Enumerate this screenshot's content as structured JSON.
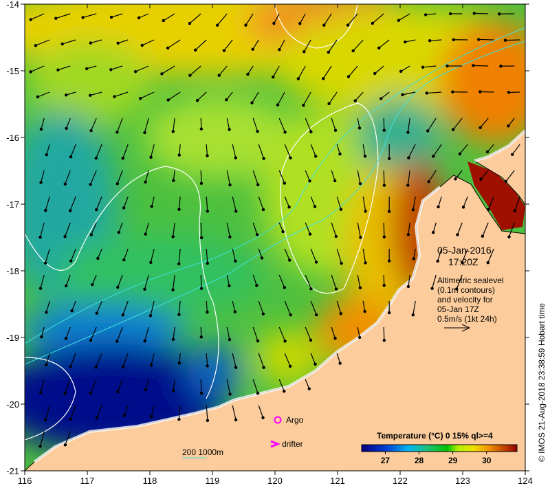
{
  "map": {
    "x_ticks": [
      "116",
      "117",
      "118",
      "119",
      "120",
      "121",
      "122",
      "123",
      "124"
    ],
    "y_ticks": [
      "-14",
      "-15",
      "-16",
      "-17",
      "-18",
      "-19",
      "-20",
      "-21"
    ],
    "lon_range": [
      116,
      124
    ],
    "lat_range": [
      -21,
      -14
    ]
  },
  "annotation": {
    "date": "05-Jan-2016",
    "time": "17:20Z",
    "lines": [
      "Altimetric sealevel",
      "(0.1m contours)",
      "and velocity for",
      "05-Jan 17Z",
      "0.5m/s (1kt 24h)"
    ]
  },
  "legend": {
    "argo": "Argo",
    "drifter": "drifter",
    "depth_scale": "200  1000m"
  },
  "colorbar": {
    "title": "Temperature (°C) 0 15% ql>=4",
    "ticks": [
      "27",
      "28",
      "29",
      "30"
    ],
    "range": [
      26.3,
      30.9
    ]
  },
  "credit": "© IMOS 21-Aug-2018 23:38:59 Hobart time",
  "colors": {
    "land": "#fccc9c",
    "argo": "#ff00ff",
    "contour": "#ffffff",
    "isobath": "#40e0e0"
  }
}
